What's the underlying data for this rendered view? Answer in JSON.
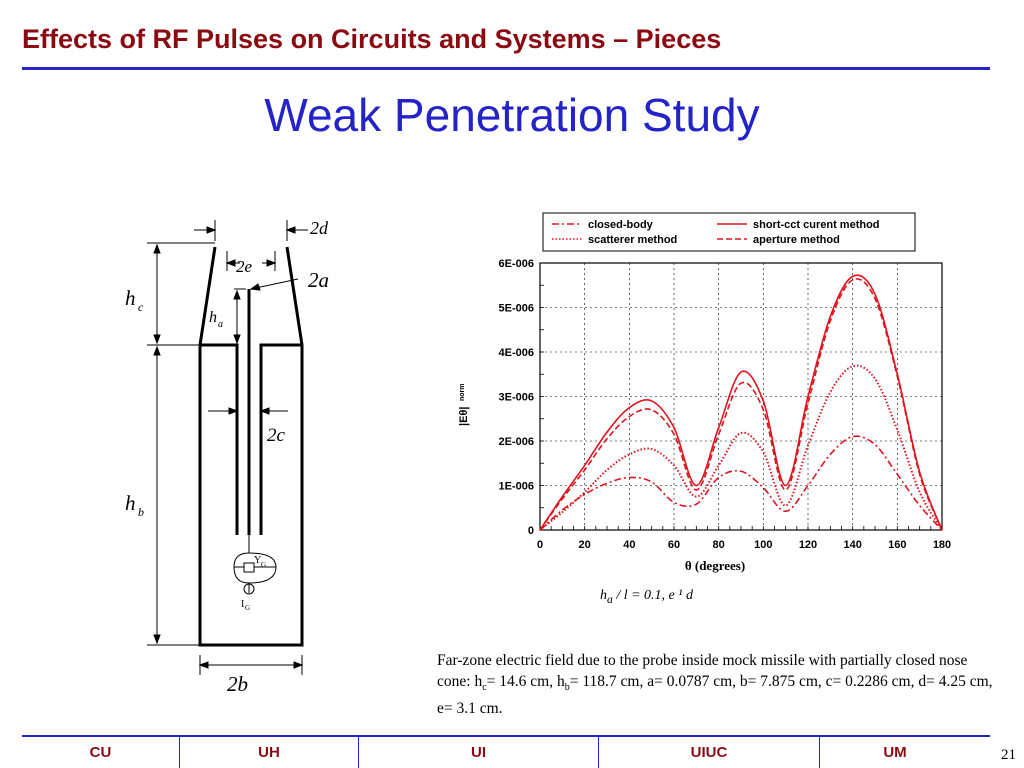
{
  "header": {
    "title": "Effects of RF Pulses on Circuits and Systems – Pieces"
  },
  "slide": {
    "title": "Weak Penetration Study"
  },
  "diagram": {
    "labels": {
      "d": "2d",
      "e": "2e",
      "a": "2a",
      "hc": "h",
      "hc_sub": "c",
      "ha": "h",
      "ha_sub": "a",
      "c": "2c",
      "hb": "h",
      "hb_sub": "b",
      "yg": "Y",
      "yg_sub": "G",
      "ig": "I",
      "ig_sub": "G",
      "b": "2b"
    }
  },
  "chart_data": {
    "type": "line",
    "xlabel": "θ (degrees)",
    "ylabel": "|Eθ|",
    "ylabel_sub": "norm",
    "xlim": [
      0,
      180
    ],
    "ylim": [
      0,
      6e-06
    ],
    "xticks": [
      "0",
      "20",
      "40",
      "60",
      "80",
      "100",
      "120",
      "140",
      "160",
      "180"
    ],
    "yticks": [
      "0",
      "1E-006",
      "2E-006",
      "3E-006",
      "4E-006",
      "5E-006",
      "6E-006"
    ],
    "grid": true,
    "legend_position": "top",
    "x": [
      0,
      10,
      20,
      30,
      40,
      50,
      60,
      70,
      80,
      90,
      100,
      110,
      120,
      130,
      140,
      150,
      160,
      170,
      180
    ],
    "series": [
      {
        "name": "closed-body",
        "style": "dashdot",
        "values": [
          0,
          4.5e-07,
          8e-07,
          1.05e-06,
          1.18e-06,
          1.08e-06,
          6.2e-07,
          5.8e-07,
          1.18e-06,
          1.32e-06,
          9.5e-07,
          4.2e-07,
          1e-06,
          1.7e-06,
          2.1e-06,
          1.92e-06,
          1.25e-06,
          5.5e-07,
          0
        ]
      },
      {
        "name": "short-cct curent method",
        "style": "solid",
        "values": [
          0,
          7.5e-07,
          1.45e-06,
          2.2e-06,
          2.75e-06,
          2.9e-06,
          2.3e-06,
          1e-06,
          2.3e-06,
          3.55e-06,
          2.9e-06,
          1e-06,
          3e-06,
          4.8e-06,
          5.7e-06,
          5.3e-06,
          3.5e-06,
          1.3e-06,
          0
        ]
      },
      {
        "name": "scatterer method",
        "style": "dotted",
        "values": [
          0,
          4e-07,
          8.5e-07,
          1.35e-06,
          1.7e-06,
          1.82e-06,
          1.45e-06,
          7.5e-07,
          1.45e-06,
          2.18e-06,
          1.75e-06,
          5.5e-07,
          1.9e-06,
          3.1e-06,
          3.68e-06,
          3.4e-06,
          2.25e-06,
          8.5e-07,
          0
        ]
      },
      {
        "name": "aperture method",
        "style": "dashed",
        "values": [
          0,
          7e-07,
          1.35e-06,
          2.05e-06,
          2.55e-06,
          2.7e-06,
          2.15e-06,
          9e-07,
          2.15e-06,
          3.3e-06,
          2.7e-06,
          9e-07,
          2.85e-06,
          4.7e-06,
          5.62e-06,
          5.2e-06,
          3.45e-06,
          1.25e-06,
          0
        ]
      }
    ]
  },
  "param_line": {
    "ha": "h",
    "ha_sub": "a",
    "rest": " / l  =  0.1, e ¹  d"
  },
  "caption": {
    "p1": "Far-zone electric field due to the probe inside mock missile with partially closed nose cone: h",
    "s1": "c",
    "p2": "= 14.6 cm, h",
    "s2": "b",
    "p3": "= 118.7 cm, a= 0.0787 cm, b= 7.875 cm, c= 0.2286 cm, d= 4.25 cm, e= 3.1 cm."
  },
  "footer": {
    "items": [
      "CU",
      "UH",
      "UI",
      "UIUC",
      "UM"
    ],
    "page": "21"
  },
  "colors": {
    "header": "#8b0a12",
    "accent": "#2323c8",
    "curve": "#e0141e"
  }
}
